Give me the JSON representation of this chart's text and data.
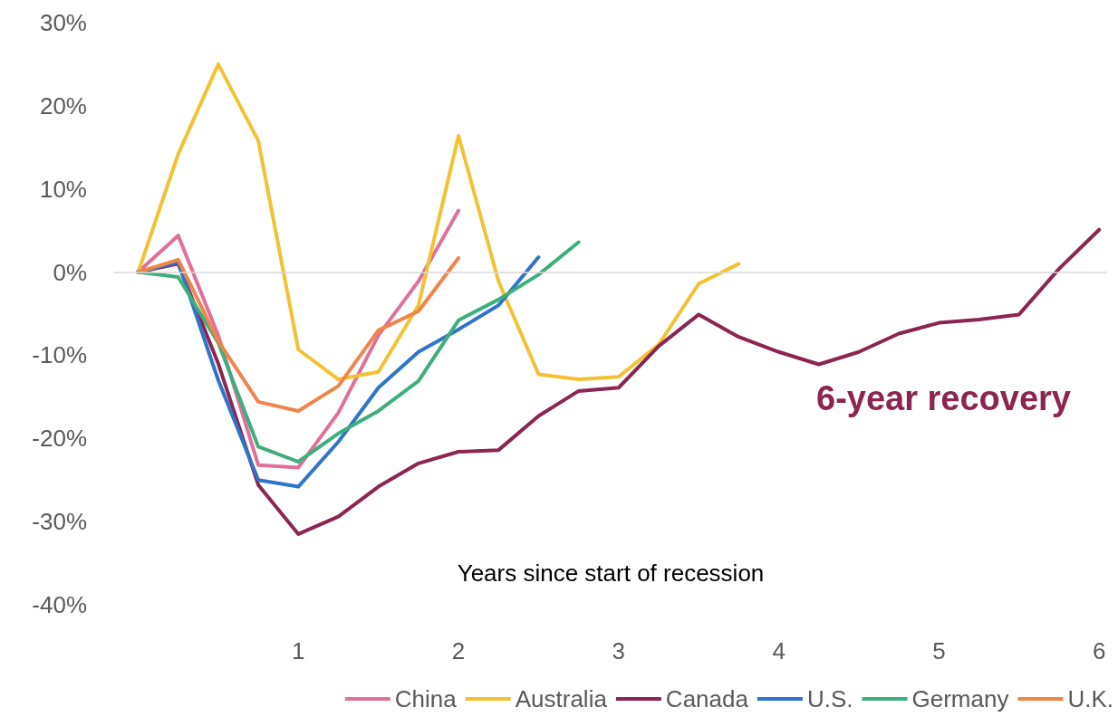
{
  "chart_data": {
    "type": "line",
    "xlabel": "Years since start of recession",
    "x": [
      0,
      0.25,
      0.5,
      0.75,
      1,
      1.25,
      1.5,
      1.75,
      2,
      2.25,
      2.5,
      2.75,
      3,
      3.25,
      3.5,
      3.75,
      4,
      4.25,
      4.5,
      4.75,
      5,
      5.25,
      5.5,
      5.75,
      6
    ],
    "series": [
      {
        "name": "China",
        "color": "#e0709a",
        "values": [
          0,
          4.4,
          -7.6,
          -23.2,
          -23.5,
          -16.9,
          -7.6,
          -1.1,
          7.4,
          null,
          null,
          null,
          null,
          null,
          null,
          null,
          null,
          null,
          null,
          null,
          null,
          null,
          null,
          null,
          null
        ]
      },
      {
        "name": "Australia",
        "color": "#f2c232",
        "values": [
          0,
          14.2,
          25,
          15.8,
          -9.3,
          -12.9,
          -12,
          -4,
          16.4,
          -1.1,
          -12.3,
          -12.9,
          -12.6,
          -8.7,
          -1.4,
          1.0,
          null,
          null,
          null,
          null,
          null,
          null,
          null,
          null,
          null
        ]
      },
      {
        "name": "Canada",
        "color": "#8b2551",
        "values": [
          0,
          1,
          -11,
          -25.6,
          -31.5,
          -29.4,
          -25.8,
          -23,
          -21.6,
          -21.4,
          -17.3,
          -14.3,
          -13.9,
          -8.9,
          -5.1,
          -7.8,
          -9.6,
          -11.1,
          -9.6,
          -7.4,
          -6.1,
          -5.7,
          -5.1,
          0.4,
          5.1
        ]
      },
      {
        "name": "U.S.",
        "color": "#2e75c8",
        "values": [
          0,
          1.2,
          -13,
          -25,
          -25.8,
          -20.4,
          -13.9,
          -9.6,
          -6.9,
          -4,
          1.8,
          null,
          null,
          null,
          null,
          null,
          null,
          null,
          null,
          null,
          null,
          null,
          null,
          null,
          null
        ]
      },
      {
        "name": "Germany",
        "color": "#3daf7c",
        "values": [
          0,
          -0.6,
          -8.5,
          -21,
          -22.8,
          -19.4,
          -16.7,
          -13.1,
          -5.8,
          -3.3,
          -0.3,
          3.6,
          null,
          null,
          null,
          null,
          null,
          null,
          null,
          null,
          null,
          null,
          null,
          null,
          null
        ]
      },
      {
        "name": "U.K.",
        "color": "#ef8548",
        "values": [
          0,
          1.5,
          -8.3,
          -15.6,
          -16.7,
          -13.7,
          -7,
          -4.7,
          1.7,
          null,
          null,
          null,
          null,
          null,
          null,
          null,
          null,
          null,
          null,
          null,
          null,
          null,
          null,
          null,
          null
        ]
      }
    ],
    "xlim": [
      -0.15,
      6.05
    ],
    "xticks": [
      1,
      2,
      3,
      4,
      5,
      6
    ],
    "ylim": [
      -40,
      30
    ],
    "yticks": [
      {
        "value": -40,
        "label": "-40%"
      },
      {
        "value": -30,
        "label": "-30%"
      },
      {
        "value": -20,
        "label": "-20%"
      },
      {
        "value": -10,
        "label": "-10%"
      },
      {
        "value": 0,
        "label": "0%"
      },
      {
        "value": 10,
        "label": "10%"
      },
      {
        "value": 20,
        "label": "20%"
      },
      {
        "value": 30,
        "label": "30%"
      }
    ],
    "ref_lines": [
      {
        "axis": "y",
        "value": 0,
        "color": "#d9d9d9"
      }
    ],
    "annotations": [
      "6-year recovery"
    ],
    "grid": false,
    "legend": "bottom",
    "marker": "none",
    "line_style": "solid"
  }
}
